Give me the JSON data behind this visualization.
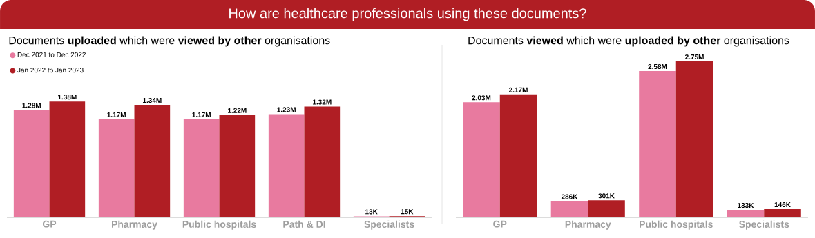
{
  "chart_data": [
    {
      "type": "bar",
      "title": "How are healthcare professionals using these documents?",
      "subtitle": "Documents **uploaded** which were **viewed by other** organisations",
      "categories": [
        "GP",
        "Pharmacy",
        "Public hospitals",
        "Path & DI",
        "Specialists"
      ],
      "legend": "top left",
      "series": [
        {
          "name": "Dec 2021 to Dec 2022",
          "color": "#e87a9f",
          "values": [
            1280000,
            1170000,
            1170000,
            1230000,
            13000
          ],
          "value_labels": [
            "1.28M",
            "1.17M",
            "1.17M",
            "1.23M",
            "13K"
          ]
        },
        {
          "name": "Jan 2022 to Jan 2023",
          "color": "#b01e24",
          "values": [
            1380000,
            1340000,
            1220000,
            1320000,
            15000
          ],
          "value_labels": [
            "1.38M",
            "1.34M",
            "1.22M",
            "1.32M",
            "15K"
          ]
        }
      ]
    },
    {
      "type": "bar",
      "subtitle": "Documents **viewed** which were **uploaded by other** organisations",
      "categories": [
        "GP",
        "Pharmacy",
        "Public hospitals",
        "Specialists"
      ],
      "series": [
        {
          "color": "#e87a9f",
          "values": [
            2030000,
            286000,
            2580000,
            133000
          ],
          "value_labels": [
            "2.03M",
            "286K",
            "2.58M",
            "133K"
          ]
        },
        {
          "color": "#b01e24",
          "values": [
            2170000,
            301000,
            2750000,
            146000
          ],
          "value_labels": [
            "2.17M",
            "301K",
            "2.75M",
            "146K"
          ]
        }
      ]
    }
  ]
}
